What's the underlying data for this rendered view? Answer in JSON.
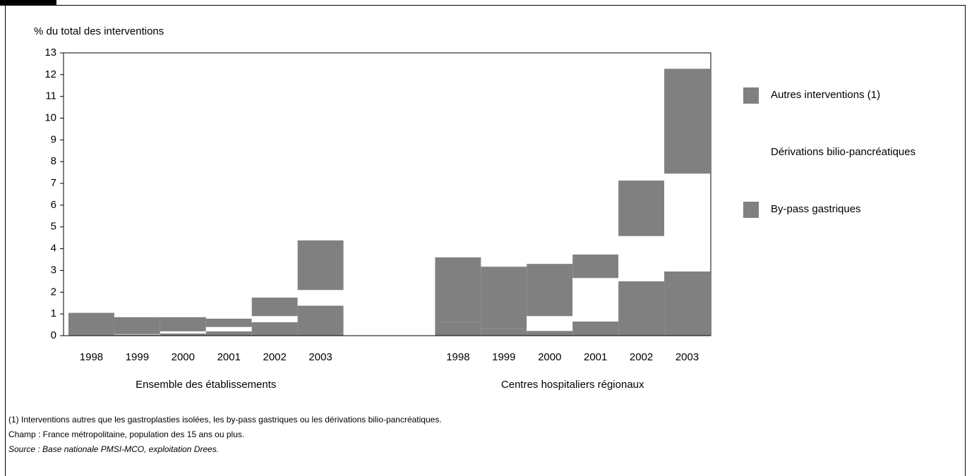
{
  "chart_data": {
    "type": "stacked-bar",
    "y_label": "% du total des interventions",
    "groups": [
      "Ensemble des établissements",
      "Centres hospitaliers régionaux"
    ],
    "categories": [
      "1998",
      "1999",
      "2000",
      "2001",
      "2002",
      "2003",
      "1998",
      "1999",
      "2000",
      "2001",
      "2002",
      "2003"
    ],
    "series": [
      {
        "name": "By-pass gastriques",
        "color": "#808080",
        "values": [
          0.05,
          0.05,
          0.1,
          0.2,
          0.62,
          1.38,
          0.62,
          0.3,
          0.22,
          0.65,
          2.5,
          2.95
        ]
      },
      {
        "name": "Dérivations bilio-pancréatiques",
        "color": "#ffffff",
        "values": [
          0,
          0.02,
          0.1,
          0.2,
          0.28,
          0.72,
          0,
          0,
          0.68,
          2.0,
          2.08,
          4.5
        ]
      },
      {
        "name": "Autres interventions (1)",
        "color": "#808080",
        "values": [
          1.0,
          0.78,
          0.65,
          0.38,
          0.85,
          2.28,
          2.98,
          2.87,
          2.4,
          1.08,
          2.55,
          4.82
        ]
      }
    ],
    "ylim": [
      0,
      13
    ],
    "yticks": [
      0,
      1,
      2,
      3,
      4,
      5,
      6,
      7,
      8,
      9,
      10,
      11,
      12,
      13
    ]
  },
  "notes": [
    "(1) Interventions autres que les gastroplasties isolées, les by-pass gastriques ou les dérivations bilio-pancréatiques.",
    "Champ : France métropolitaine, population des 15 ans ou plus.",
    "Source : Base nationale PMSI-MCO, exploitation Drees."
  ]
}
